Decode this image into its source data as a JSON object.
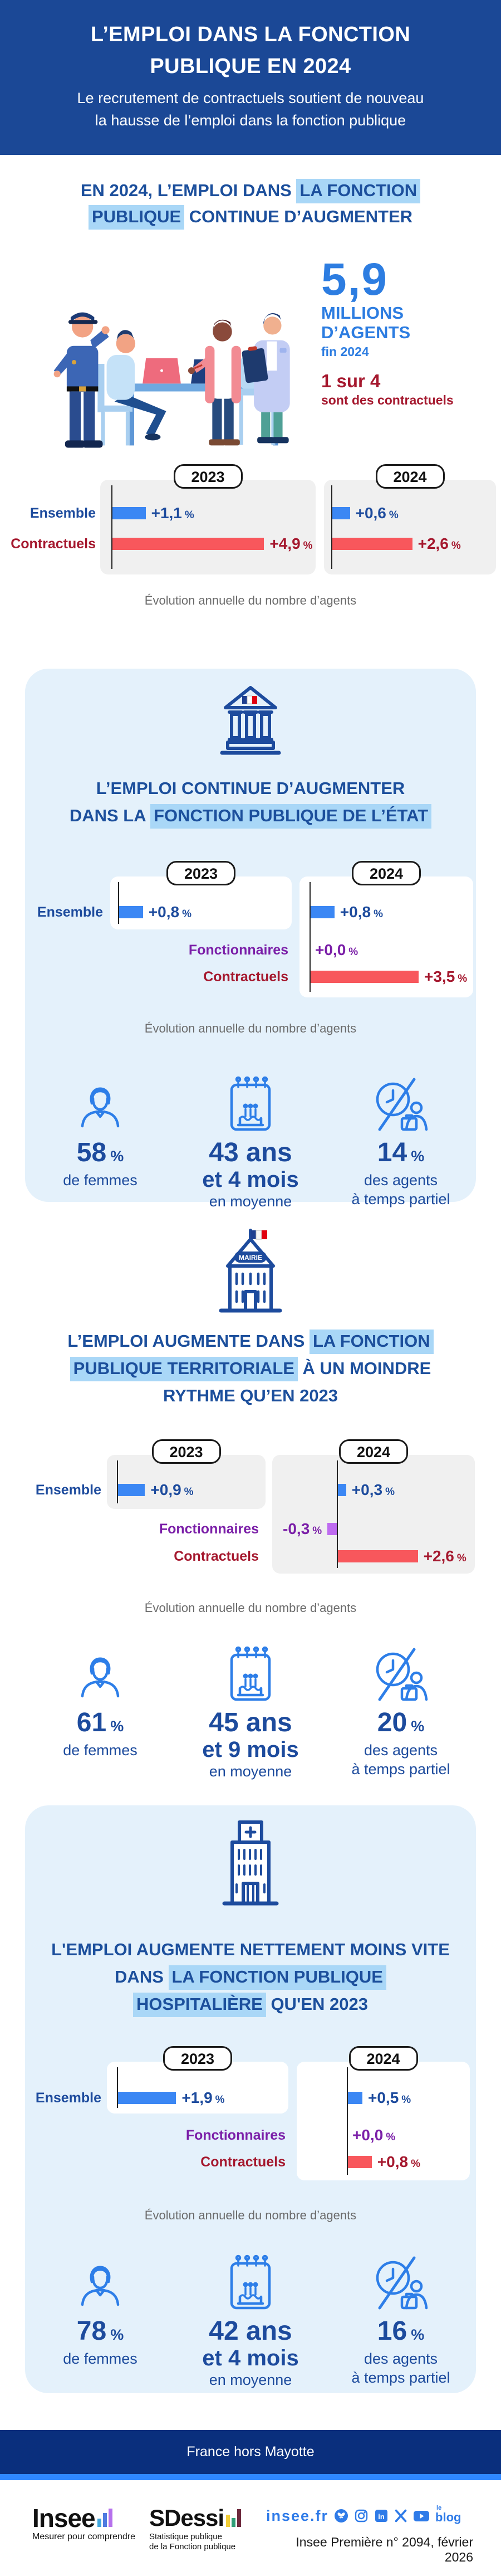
{
  "colors": {
    "header_bg": "#1B4896",
    "heading_blue": "#1C4F9C",
    "highlight_blue": "#A9D7F7",
    "panel_lightblue": "#E4F1FB",
    "panel_gray": "#F0F0F0",
    "bar_blue": "#3B87F4",
    "bar_red": "#F8575C",
    "bar_purple": "#BE6BF0",
    "value_blue": "#1D4B9D",
    "value_red": "#A5182E",
    "value_purple": "#7B1FA8",
    "key_blue": "#2D7DE1",
    "band_navy": "#0A2F7D",
    "band_strip_blue": "#2F87FF",
    "icon_blue": "#2D7EE8"
  },
  "header": {
    "title_lines": [
      "L’EMPLOI DANS LA FONCTION",
      "PUBLIQUE EN 2024"
    ],
    "subtitle_lines": [
      "Le recrutement de contractuels soutient de nouveau",
      "la hausse de l’emploi dans la fonction publique"
    ]
  },
  "intro": {
    "heading_lines": [
      [
        {
          "t": "EN 2024, L’EMPLOI DANS ",
          "hl": false
        },
        {
          "t": "LA FONCTION",
          "hl": true
        }
      ],
      [
        {
          "t": "PUBLIQUE",
          "hl": true
        },
        {
          "t": " CONTINUE D’AUGMENTER",
          "hl": false
        }
      ]
    ],
    "big_number": "5,9",
    "big_label_1": "MILLIONS",
    "big_label_2": "D’AGENTS",
    "big_sub": "fin 2024",
    "ratio": "1 sur 4",
    "ratio_sub": "sont des contractuels"
  },
  "sections": {
    "fp": {
      "chart": {
        "caption": "Évolution annuelle du nombre d’agents",
        "unit": "%",
        "panels": [
          {
            "year": "2023",
            "rows": [
              {
                "label": "Ensemble",
                "kind": "ensemble",
                "value": "+1,1",
                "pct": 1.1
              },
              {
                "label": "Contractuels",
                "kind": "contractuels",
                "value": "+4,9",
                "pct": 4.9
              }
            ]
          },
          {
            "year": "2024",
            "rows": [
              {
                "label": "Ensemble",
                "kind": "ensemble",
                "value": "+0,6",
                "pct": 0.6
              },
              {
                "label": "Contractuels",
                "kind": "contractuels",
                "value": "+2,6",
                "pct": 2.6
              }
            ]
          }
        ]
      }
    },
    "fpe": {
      "title_lines": [
        [
          {
            "t": "L’EMPLOI CONTINUE D’AUGMENTER",
            "hl": false
          }
        ],
        [
          {
            "t": "DANS LA ",
            "hl": false
          },
          {
            "t": "FONCTION PUBLIQUE DE L’ÉTAT",
            "hl": true
          }
        ]
      ],
      "chart": {
        "caption": "Évolution annuelle du nombre d’agents",
        "unit": "%",
        "panels": [
          {
            "year": "2023",
            "rows": [
              {
                "label": "Ensemble",
                "kind": "ensemble",
                "value": "+0,8",
                "pct": 0.8
              }
            ]
          },
          {
            "year": "2024",
            "rows": [
              {
                "label": "Ensemble",
                "kind": "ensemble",
                "value": "+0,8",
                "pct": 0.8
              },
              {
                "label": "Fonctionnaires",
                "kind": "fonctionnaires",
                "value": "+0,0",
                "pct": 0
              },
              {
                "label": "Contractuels",
                "kind": "contractuels",
                "value": "+3,5",
                "pct": 3.5
              }
            ]
          }
        ]
      },
      "stats": [
        {
          "icon": "woman-icon",
          "num": "58",
          "unit": "%",
          "sub": [
            "de femmes"
          ]
        },
        {
          "icon": "birthday-calendar-icon",
          "num": "43 ans",
          "num2": "et 4 mois",
          "sub": [
            "en moyenne"
          ]
        },
        {
          "icon": "part-time-icon",
          "num": "14",
          "unit": "%",
          "sub": [
            "des agents",
            "à temps partiel"
          ]
        }
      ]
    },
    "fpt": {
      "icon_label": "MAIRIE",
      "title_lines": [
        [
          {
            "t": "L’EMPLOI AUGMENTE DANS ",
            "hl": false
          },
          {
            "t": "LA FONCTION",
            "hl": true
          }
        ],
        [
          {
            "t": "PUBLIQUE TERRITORIALE",
            "hl": true
          },
          {
            "t": " À UN MOINDRE",
            "hl": false
          }
        ],
        [
          {
            "t": "RYTHME QU’EN 2023",
            "hl": false
          }
        ]
      ],
      "chart": {
        "caption": "Évolution annuelle du nombre d’agents",
        "unit": "%",
        "panels": [
          {
            "year": "2023",
            "rows": [
              {
                "label": "Ensemble",
                "kind": "ensemble",
                "value": "+0,9",
                "pct": 0.9
              }
            ]
          },
          {
            "year": "2024",
            "rows": [
              {
                "label": "Ensemble",
                "kind": "ensemble",
                "value": "+0,3",
                "pct": 0.3
              },
              {
                "label": "Fonctionnaires",
                "kind": "fonctionnaires",
                "value": "-0,3",
                "pct": -0.3
              },
              {
                "label": "Contractuels",
                "kind": "contractuels",
                "value": "+2,6",
                "pct": 2.6
              }
            ]
          }
        ]
      },
      "stats": [
        {
          "icon": "woman-icon",
          "num": "61",
          "unit": "%",
          "sub": [
            "de femmes"
          ]
        },
        {
          "icon": "birthday-calendar-icon",
          "num": "45 ans",
          "num2": "et 9 mois",
          "sub": [
            "en moyenne"
          ]
        },
        {
          "icon": "part-time-icon",
          "num": "20",
          "unit": "%",
          "sub": [
            "des agents",
            "à temps partiel"
          ]
        }
      ]
    },
    "fph": {
      "title_lines": [
        [
          {
            "t": "L'EMPLOI AUGMENTE NETTEMENT MOINS VITE",
            "hl": false
          }
        ],
        [
          {
            "t": "DANS ",
            "hl": false
          },
          {
            "t": "LA FONCTION PUBLIQUE",
            "hl": true
          }
        ],
        [
          {
            "t": "HOSPITALIÈRE",
            "hl": true
          },
          {
            "t": " QU'EN 2023",
            "hl": false
          }
        ]
      ],
      "chart": {
        "caption": "Évolution annuelle du nombre d’agents",
        "unit": "%",
        "panels": [
          {
            "year": "2023",
            "rows": [
              {
                "label": "Ensemble",
                "kind": "ensemble",
                "value": "+1,9",
                "pct": 1.9
              }
            ]
          },
          {
            "year": "2024",
            "rows": [
              {
                "label": "Ensemble",
                "kind": "ensemble",
                "value": "+0,5",
                "pct": 0.5
              },
              {
                "label": "Fonctionnaires",
                "kind": "fonctionnaires",
                "value": "+0,0",
                "pct": 0
              },
              {
                "label": "Contractuels",
                "kind": "contractuels",
                "value": "+0,8",
                "pct": 0.8
              }
            ]
          }
        ]
      },
      "stats": [
        {
          "icon": "woman-icon",
          "num": "78",
          "unit": "%",
          "sub": [
            "de femmes"
          ]
        },
        {
          "icon": "birthday-calendar-icon",
          "num": "42 ans",
          "num2": "et 4 mois",
          "sub": [
            "en moyenne"
          ]
        },
        {
          "icon": "part-time-icon",
          "num": "16",
          "unit": "%",
          "sub": [
            "des agents",
            "à temps partiel"
          ]
        }
      ]
    }
  },
  "note": "France hors Mayotte",
  "footer": {
    "insee": {
      "name": "Insee",
      "tagline": "Mesurer pour comprendre"
    },
    "sdessi": {
      "name": "SDessi",
      "tagline_lines": [
        "Statistique publique",
        "de la Fonction publique"
      ]
    },
    "site": "insee.fr",
    "blog_le": "le",
    "blog": "blog",
    "social_icons": [
      "bluesky-icon",
      "instagram-icon",
      "linkedin-icon",
      "x-icon",
      "youtube-icon",
      "blog-link"
    ],
    "reference": "Insee Première n° 2094, février 2026"
  },
  "chart_data": [
    {
      "type": "bar",
      "title": "Fonction publique — évolution annuelle du nombre d’agents",
      "unit": "%",
      "panels": [
        {
          "year": "2023",
          "categories": [
            "Ensemble",
            "Contractuels"
          ],
          "values": [
            1.1,
            4.9
          ]
        },
        {
          "year": "2024",
          "categories": [
            "Ensemble",
            "Contractuels"
          ],
          "values": [
            0.6,
            2.6
          ]
        }
      ]
    },
    {
      "type": "bar",
      "title": "Fonction publique de l’État — évolution annuelle du nombre d’agents",
      "unit": "%",
      "panels": [
        {
          "year": "2023",
          "categories": [
            "Ensemble"
          ],
          "values": [
            0.8
          ]
        },
        {
          "year": "2024",
          "categories": [
            "Ensemble",
            "Fonctionnaires",
            "Contractuels"
          ],
          "values": [
            0.8,
            0.0,
            3.5
          ]
        }
      ]
    },
    {
      "type": "bar",
      "title": "Fonction publique territoriale — évolution annuelle du nombre d’agents",
      "unit": "%",
      "panels": [
        {
          "year": "2023",
          "categories": [
            "Ensemble"
          ],
          "values": [
            0.9
          ]
        },
        {
          "year": "2024",
          "categories": [
            "Ensemble",
            "Fonctionnaires",
            "Contractuels"
          ],
          "values": [
            0.3,
            -0.3,
            2.6
          ]
        }
      ]
    },
    {
      "type": "bar",
      "title": "Fonction publique hospitalière — évolution annuelle du nombre d’agents",
      "unit": "%",
      "panels": [
        {
          "year": "2023",
          "categories": [
            "Ensemble"
          ],
          "values": [
            1.9
          ]
        },
        {
          "year": "2024",
          "categories": [
            "Ensemble",
            "Fonctionnaires",
            "Contractuels"
          ],
          "values": [
            0.5,
            0.0,
            0.8
          ]
        }
      ]
    }
  ]
}
